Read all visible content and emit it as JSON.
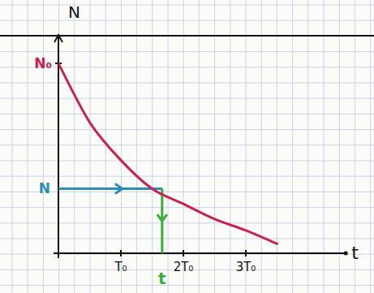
{
  "chart_data": {
    "type": "line",
    "x_label": "t",
    "y_label": "N",
    "x": [
      0,
      0.5,
      1,
      1.5,
      2,
      2.5,
      3,
      3.5
    ],
    "series": [
      {
        "name": "N",
        "color": "#c8234f",
        "values": [
          1.0,
          0.69,
          0.49,
          0.34,
          0.26,
          0.18,
          0.12,
          0.05
        ]
      }
    ],
    "xlim": [
      0,
      4.6
    ],
    "xticks": [
      {
        "value": 1,
        "label": "T₀"
      },
      {
        "value": 2,
        "label": "2T₀"
      },
      {
        "value": 3,
        "label": "3T₀"
      }
    ],
    "ylim": [
      0,
      1.15
    ],
    "yticks": [
      {
        "value": 1,
        "label": "N₀"
      }
    ],
    "annotations": [
      {
        "text": "N",
        "value": 0.34,
        "color": "#2a8fb5"
      },
      {
        "text": "t",
        "value": 1.66,
        "color": "#3aac3a"
      }
    ]
  }
}
